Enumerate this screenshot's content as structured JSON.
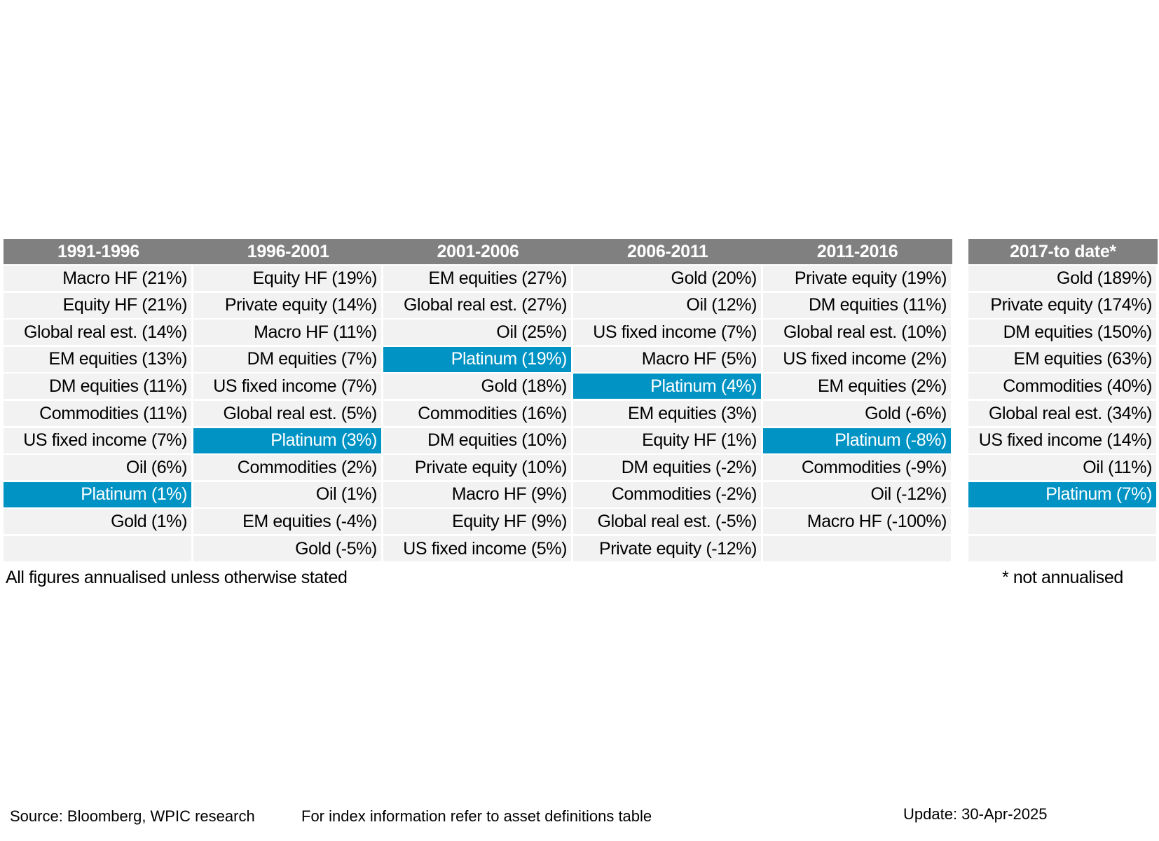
{
  "chart_data": {
    "type": "table",
    "main_periods": [
      {
        "label": "1991-1996",
        "entries": [
          "Macro HF (21%)",
          "Equity HF (21%)",
          "Global real est. (14%)",
          "EM equities (13%)",
          "DM equities (11%)",
          "Commodities (11%)",
          "US fixed income (7%)",
          "Oil (6%)",
          "Platinum (1%)",
          "Gold (1%)",
          ""
        ],
        "highlight_index": 8
      },
      {
        "label": "1996-2001",
        "entries": [
          "Equity HF (19%)",
          "Private equity (14%)",
          "Macro HF (11%)",
          "DM equities (7%)",
          "US fixed income (7%)",
          "Global real est. (5%)",
          "Platinum (3%)",
          "Commodities (2%)",
          "Oil (1%)",
          "EM equities (-4%)",
          "Gold (-5%)"
        ],
        "highlight_index": 6
      },
      {
        "label": "2001-2006",
        "entries": [
          "EM equities (27%)",
          "Global real est. (27%)",
          "Oil (25%)",
          "Platinum (19%)",
          "Gold (18%)",
          "Commodities (16%)",
          "DM equities (10%)",
          "Private equity (10%)",
          "Macro HF (9%)",
          "Equity HF (9%)",
          "US fixed income (5%)"
        ],
        "highlight_index": 3
      },
      {
        "label": "2006-2011",
        "entries": [
          "Gold (20%)",
          "Oil (12%)",
          "US fixed income (7%)",
          "Macro HF (5%)",
          "Platinum (4%)",
          "EM equities (3%)",
          "Equity HF (1%)",
          "DM equities (-2%)",
          "Commodities (-2%)",
          "Global real est. (-5%)",
          "Private equity (-12%)"
        ],
        "highlight_index": 4
      },
      {
        "label": "2011-2016",
        "entries": [
          "Private equity (19%)",
          "DM equities (11%)",
          "Global real est. (10%)",
          "US fixed income (2%)",
          "EM equities (2%)",
          "Gold (-6%)",
          "Platinum (-8%)",
          "Commodities (-9%)",
          "Oil (-12%)",
          "Macro HF (-100%)",
          ""
        ],
        "highlight_index": 6
      }
    ],
    "side_period": {
      "label": "2017-to date*",
      "entries": [
        "Gold (189%)",
        "Private equity (174%)",
        "DM equities (150%)",
        "EM equities (63%)",
        "Commodities (40%)",
        "Global real est. (34%)",
        "US fixed income (14%)",
        "Oil (11%)",
        "Platinum (7%)",
        "",
        ""
      ],
      "highlight_index": 8
    },
    "colors": {
      "header_bg": "#808080",
      "cell_bg": "#f2f2f2",
      "highlight_bg": "#0093c4"
    }
  },
  "notes": {
    "annualised": "All figures annualised unless otherwise stated",
    "not_annualised": "* not annualised"
  },
  "footer": {
    "source": "Source: Bloomberg, WPIC research",
    "index_info": "For index information refer to asset definitions table",
    "update": "Update: 30-Apr-2025"
  }
}
